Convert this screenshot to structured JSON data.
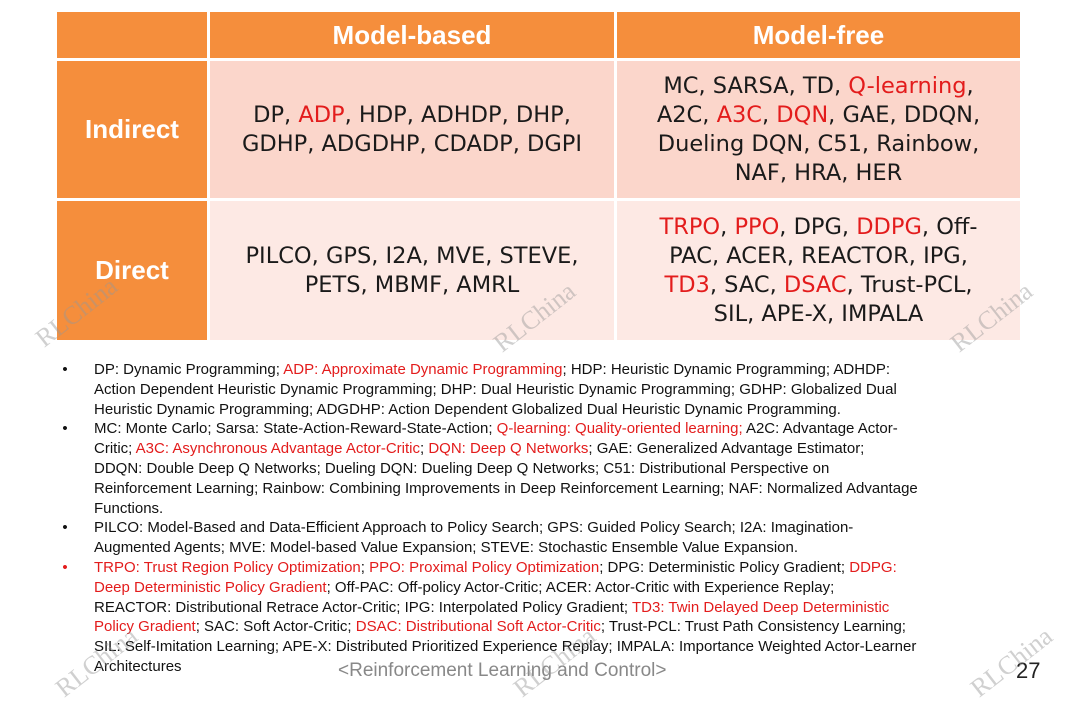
{
  "table": {
    "col_headers": [
      "Model-based",
      "Model-free"
    ],
    "rows": [
      {
        "label": "Indirect",
        "model_based": [
          [
            {
              "t": "DP, "
            },
            {
              "t": "ADP",
              "r": true
            },
            {
              "t": ", HDP, ADHDP, DHP,"
            }
          ],
          [
            {
              "t": "GDHP, ADGDHP, CDADP, DGPI"
            }
          ]
        ],
        "model_free": [
          [
            {
              "t": "MC, SARSA, TD, "
            },
            {
              "t": "Q-learning",
              "r": true
            },
            {
              "t": ","
            }
          ],
          [
            {
              "t": "A2C, "
            },
            {
              "t": "A3C",
              "r": true
            },
            {
              "t": ", "
            },
            {
              "t": "DQN",
              "r": true
            },
            {
              "t": ", GAE, DDQN,"
            }
          ],
          [
            {
              "t": "Dueling DQN, C51, Rainbow,"
            }
          ],
          [
            {
              "t": "NAF, HRA, HER"
            }
          ]
        ]
      },
      {
        "label": "Direct",
        "model_based": [
          [
            {
              "t": "PILCO, GPS, I2A, MVE, STEVE,"
            }
          ],
          [
            {
              "t": "PETS, MBMF, AMRL"
            }
          ]
        ],
        "model_free": [
          [
            {
              "t": "TRPO",
              "r": true
            },
            {
              "t": ", "
            },
            {
              "t": "PPO",
              "r": true
            },
            {
              "t": ", DPG, "
            },
            {
              "t": "DDPG",
              "r": true
            },
            {
              "t": ", Off-"
            }
          ],
          [
            {
              "t": "PAC, ACER, REACTOR, IPG,"
            }
          ],
          [
            {
              "t": "TD3",
              "r": true
            },
            {
              "t": ", SAC, "
            },
            {
              "t": "DSAC",
              "r": true
            },
            {
              "t": ", Trust-PCL,"
            }
          ],
          [
            {
              "t": "SIL, APE-X, IMPALA"
            }
          ]
        ]
      }
    ]
  },
  "notes": {
    "bullet": "•",
    "items": [
      {
        "red_bullet": false,
        "lines": [
          [
            {
              "t": "DP: Dynamic Programming; "
            },
            {
              "t": "ADP: Approximate Dynamic Programming",
              "r": true
            },
            {
              "t": "; HDP: Heuristic Dynamic Programming; ADHDP:"
            }
          ],
          [
            {
              "t": "Action Dependent Heuristic Dynamic Programming; DHP: Dual Heuristic Dynamic Programming; GDHP: Globalized Dual"
            }
          ],
          [
            {
              "t": "Heuristic Dynamic Programming; ADGDHP: Action Dependent Globalized Dual Heuristic Dynamic Programming."
            }
          ]
        ]
      },
      {
        "red_bullet": false,
        "lines": [
          [
            {
              "t": "MC: Monte Carlo; Sarsa: State-Action-Reward-State-Action; "
            },
            {
              "t": "Q-learning: Quality-oriented learning;",
              "r": true
            },
            {
              "t": " A2C: Advantage Actor-"
            }
          ],
          [
            {
              "t": "Critic; "
            },
            {
              "t": "A3C: Asynchronous Advantage Actor-Critic",
              "r": true
            },
            {
              "t": "; "
            },
            {
              "t": "DQN: Deep Q Networks",
              "r": true
            },
            {
              "t": "; GAE: Generalized Advantage Estimator;"
            }
          ],
          [
            {
              "t": "DDQN: Double Deep Q Networks; Dueling DQN: Dueling Deep Q Networks; C51: Distributional Perspective on"
            }
          ],
          [
            {
              "t": "Reinforcement Learning; Rainbow: Combining Improvements in Deep Reinforcement Learning; NAF: Normalized Advantage"
            }
          ],
          [
            {
              "t": "Functions."
            }
          ]
        ]
      },
      {
        "red_bullet": false,
        "lines": [
          [
            {
              "t": "PILCO: Model-Based and Data-Efficient Approach to Policy Search; GPS: Guided Policy Search; I2A: Imagination-"
            }
          ],
          [
            {
              "t": "Augmented Agents; MVE: Model-based Value Expansion; STEVE: Stochastic Ensemble Value Expansion."
            }
          ]
        ]
      },
      {
        "red_bullet": true,
        "lines": [
          [
            {
              "t": "TRPO: Trust Region Policy Optimization",
              "r": true
            },
            {
              "t": "; "
            },
            {
              "t": "PPO: Proximal Policy Optimization",
              "r": true
            },
            {
              "t": "; DPG: Deterministic Policy Gradient; "
            },
            {
              "t": "DDPG:",
              "r": true
            }
          ],
          [
            {
              "t": "Deep Deterministic Policy Gradient",
              "r": true
            },
            {
              "t": "; Off-PAC: Off-policy Actor-Critic; ACER: Actor-Critic with Experience Replay;"
            }
          ],
          [
            {
              "t": "REACTOR: Distributional Retrace Actor-Critic; IPG: Interpolated Policy Gradient; "
            },
            {
              "t": "TD3: Twin Delayed Deep Deterministic",
              "r": true
            }
          ],
          [
            {
              "t": "Policy Gradient",
              "r": true
            },
            {
              "t": "; SAC: Soft Actor-Critic; "
            },
            {
              "t": "DSAC: Distributional Soft Actor-Critic",
              "r": true
            },
            {
              "t": "; Trust-PCL: Trust Path Consistency Learning;"
            }
          ],
          [
            {
              "t": "SIL: Self-Imitation Learning; APE-X: Distributed Prioritized Experience Replay; IMPALA: Importance Weighted Actor-Learner"
            }
          ],
          [
            {
              "t": "Architectures"
            }
          ]
        ]
      }
    ]
  },
  "footer": "<Reinforcement Learning and Control>",
  "page_number": "27",
  "watermark": "RLChina",
  "colors": {
    "orange": "#f58e3c",
    "cell_dark": "#fbd6cb",
    "cell_light": "#fde9e4",
    "red": "#e31c1c"
  }
}
